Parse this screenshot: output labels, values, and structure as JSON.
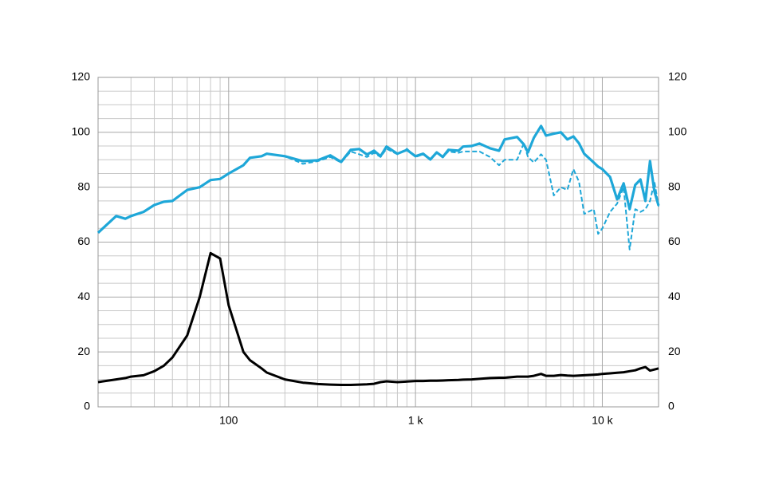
{
  "chart_data": {
    "type": "line",
    "x": [
      20,
      25,
      28,
      30,
      35,
      40,
      45,
      50,
      60,
      70,
      80,
      90,
      100,
      120,
      130,
      150,
      160,
      200,
      250,
      300,
      350,
      400,
      450,
      500,
      550,
      600,
      650,
      700,
      800,
      900,
      1000,
      1100,
      1200,
      1300,
      1400,
      1500,
      1700,
      1800,
      2000,
      2200,
      2500,
      2800,
      3000,
      3500,
      3800,
      4000,
      4300,
      4700,
      5000,
      5500,
      6000,
      6500,
      7000,
      7500,
      8000,
      9000,
      9500,
      10000,
      11000,
      12000,
      13000,
      14000,
      15000,
      16000,
      17000,
      18000,
      19000,
      20000
    ],
    "series": [
      {
        "color": "#1ea7d8",
        "width": 3.2,
        "dashed": false,
        "values": [
          63.4,
          69.5,
          68.5,
          69.5,
          71,
          73.5,
          74.7,
          75,
          79,
          80,
          82.6,
          83,
          85,
          88,
          90.7,
          91.3,
          92.2,
          91.3,
          89.5,
          89.8,
          91.6,
          89.2,
          93.6,
          93.9,
          91.9,
          93.3,
          91.3,
          94.8,
          92.2,
          93.6,
          91.3,
          92.2,
          90.1,
          92.7,
          91,
          93.6,
          93.3,
          94.8,
          95,
          95.9,
          94.2,
          93.3,
          97.4,
          98.3,
          95.6,
          92.7,
          98,
          102.3,
          98.8,
          99.5,
          100,
          97.4,
          98.5,
          96,
          92.2,
          89,
          87.5,
          86.6,
          83.7,
          75.6,
          81.4,
          72,
          80.8,
          82.8,
          75,
          89.5,
          78.5,
          73.3
        ]
      },
      {
        "color": "#1ea7d8",
        "width": 2,
        "dashed": true,
        "values": [
          63.4,
          69.5,
          68.5,
          69.5,
          71,
          73.5,
          74.7,
          75,
          79,
          80,
          82.6,
          83,
          85,
          88,
          90.7,
          91.3,
          92.2,
          91.3,
          88.5,
          89.5,
          91,
          89,
          93,
          92,
          91,
          92.5,
          91,
          94,
          92,
          94,
          91,
          92,
          90,
          92.5,
          91,
          93,
          92.5,
          93,
          93,
          93,
          91,
          88,
          90,
          90,
          96,
          91,
          89,
          92,
          90,
          77,
          80,
          79,
          86.6,
          82,
          70.3,
          72,
          63,
          65,
          71,
          74,
          80,
          57.3,
          72,
          71,
          72,
          75,
          82,
          73
        ]
      },
      {
        "color": "#000000",
        "width": 3,
        "dashed": false,
        "axis": "y2",
        "values": [
          9,
          10,
          10.5,
          11,
          11.5,
          13,
          15,
          18,
          26,
          40,
          56,
          54,
          37,
          20,
          17,
          14,
          12.5,
          10,
          8.8,
          8.3,
          8.1,
          8,
          8,
          8.1,
          8.2,
          8.4,
          9,
          9.3,
          9,
          9.2,
          9.4,
          9.4,
          9.5,
          9.5,
          9.6,
          9.7,
          9.8,
          9.9,
          10,
          10.2,
          10.5,
          10.6,
          10.6,
          11,
          11,
          11,
          11.3,
          12,
          11.3,
          11.3,
          11.6,
          11.4,
          11.3,
          11.4,
          11.5,
          11.7,
          11.8,
          12,
          12.2,
          12.4,
          12.6,
          13,
          13.3,
          14,
          14.5,
          13.2,
          13.6,
          14
        ]
      }
    ],
    "log_x": true,
    "xlim": [
      20,
      20000
    ],
    "xticks": [
      100,
      {
        "value": 1000,
        "label": "1 k"
      },
      {
        "value": 10000,
        "label": "10 k"
      }
    ],
    "xgrid": [
      20,
      30,
      40,
      50,
      60,
      70,
      80,
      90,
      200,
      300,
      400,
      500,
      600,
      700,
      800,
      900,
      2000,
      3000,
      4000,
      5000,
      6000,
      7000,
      8000,
      9000,
      20000
    ],
    "ylim": [
      0,
      120
    ],
    "yticks": [
      0,
      20,
      40,
      60,
      80,
      100,
      120
    ],
    "ygrid": [
      5,
      10,
      15,
      25,
      30,
      35,
      45,
      50,
      55,
      65,
      70,
      75,
      85,
      90,
      95,
      105,
      110,
      115
    ],
    "y2lim": [
      0,
      120
    ],
    "y2ticks": [
      0,
      20,
      40,
      60,
      80,
      100,
      120
    ],
    "grid": true
  }
}
